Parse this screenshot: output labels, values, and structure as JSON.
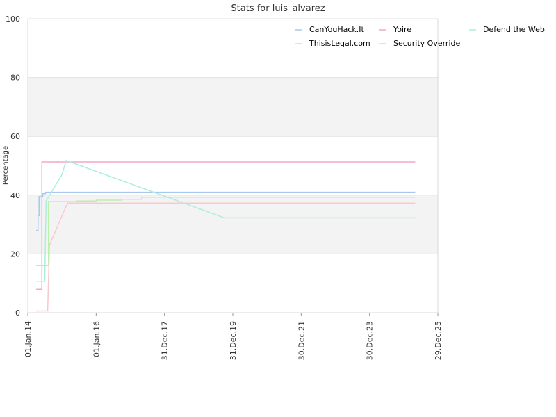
{
  "chart_data": {
    "type": "line",
    "title": "Stats for luis_alvarez",
    "xlabel": "",
    "ylabel": "Percentage",
    "ylim": [
      0,
      100
    ],
    "yticks": [
      0,
      20,
      40,
      60,
      80,
      100
    ],
    "xlim": [
      "2014-01-01",
      "2025-12-29"
    ],
    "xticks": [
      "2014-01-01",
      "2016-01-01",
      "2017-12-31",
      "2019-12-31",
      "2021-12-30",
      "2023-12-30",
      "2025-12-29"
    ],
    "xtick_labels": [
      "01.Jan.14",
      "01.Jan.16",
      "31.Dec.17",
      "31.Dec.19",
      "30.Dec.21",
      "30.Dec.23",
      "29.Dec.25"
    ],
    "grid": true,
    "banded_background": true,
    "legend_position": "top-right",
    "series": [
      {
        "name": "CanYouHack.It",
        "color": "#a9c8f0",
        "step": true,
        "points": [
          [
            "2014-04-01",
            28
          ],
          [
            "2014-04-20",
            33
          ],
          [
            "2014-05-01",
            39.5
          ],
          [
            "2014-06-10",
            40.5
          ],
          [
            "2014-07-10",
            41
          ],
          [
            "2025-05-01",
            41
          ]
        ]
      },
      {
        "name": "Yoire",
        "color": "#f0a9c8",
        "step": true,
        "points": [
          [
            "2014-04-01",
            8
          ],
          [
            "2014-06-01",
            51.3
          ],
          [
            "2025-05-01",
            51.3
          ]
        ]
      },
      {
        "name": "Defend the Web",
        "color": "#a9f0dc",
        "step": false,
        "points": [
          [
            "2014-04-01",
            10.7
          ],
          [
            "2014-07-01",
            10.7
          ],
          [
            "2014-07-15",
            38
          ],
          [
            "2015-01-01",
            47
          ],
          [
            "2015-02-15",
            51.8
          ],
          [
            "2019-10-01",
            32.3
          ],
          [
            "2025-05-01",
            32.3
          ]
        ]
      },
      {
        "name": "ThisisLegal.com",
        "color": "#b8f0a9",
        "step": true,
        "points": [
          [
            "2014-04-01",
            16
          ],
          [
            "2014-08-10",
            37.8
          ],
          [
            "2015-06-01",
            38
          ],
          [
            "2016-01-01",
            38.3
          ],
          [
            "2016-10-01",
            38.6
          ],
          [
            "2017-05-01",
            39.3
          ],
          [
            "2025-05-01",
            39.3
          ]
        ]
      },
      {
        "name": "Security Override",
        "color": "#f8c8d0",
        "step": false,
        "points": [
          [
            "2014-04-01",
            0.6
          ],
          [
            "2014-08-01",
            0.6
          ],
          [
            "2014-08-20",
            23
          ],
          [
            "2015-03-01",
            37.3
          ],
          [
            "2025-05-01",
            37.3
          ]
        ]
      }
    ]
  }
}
